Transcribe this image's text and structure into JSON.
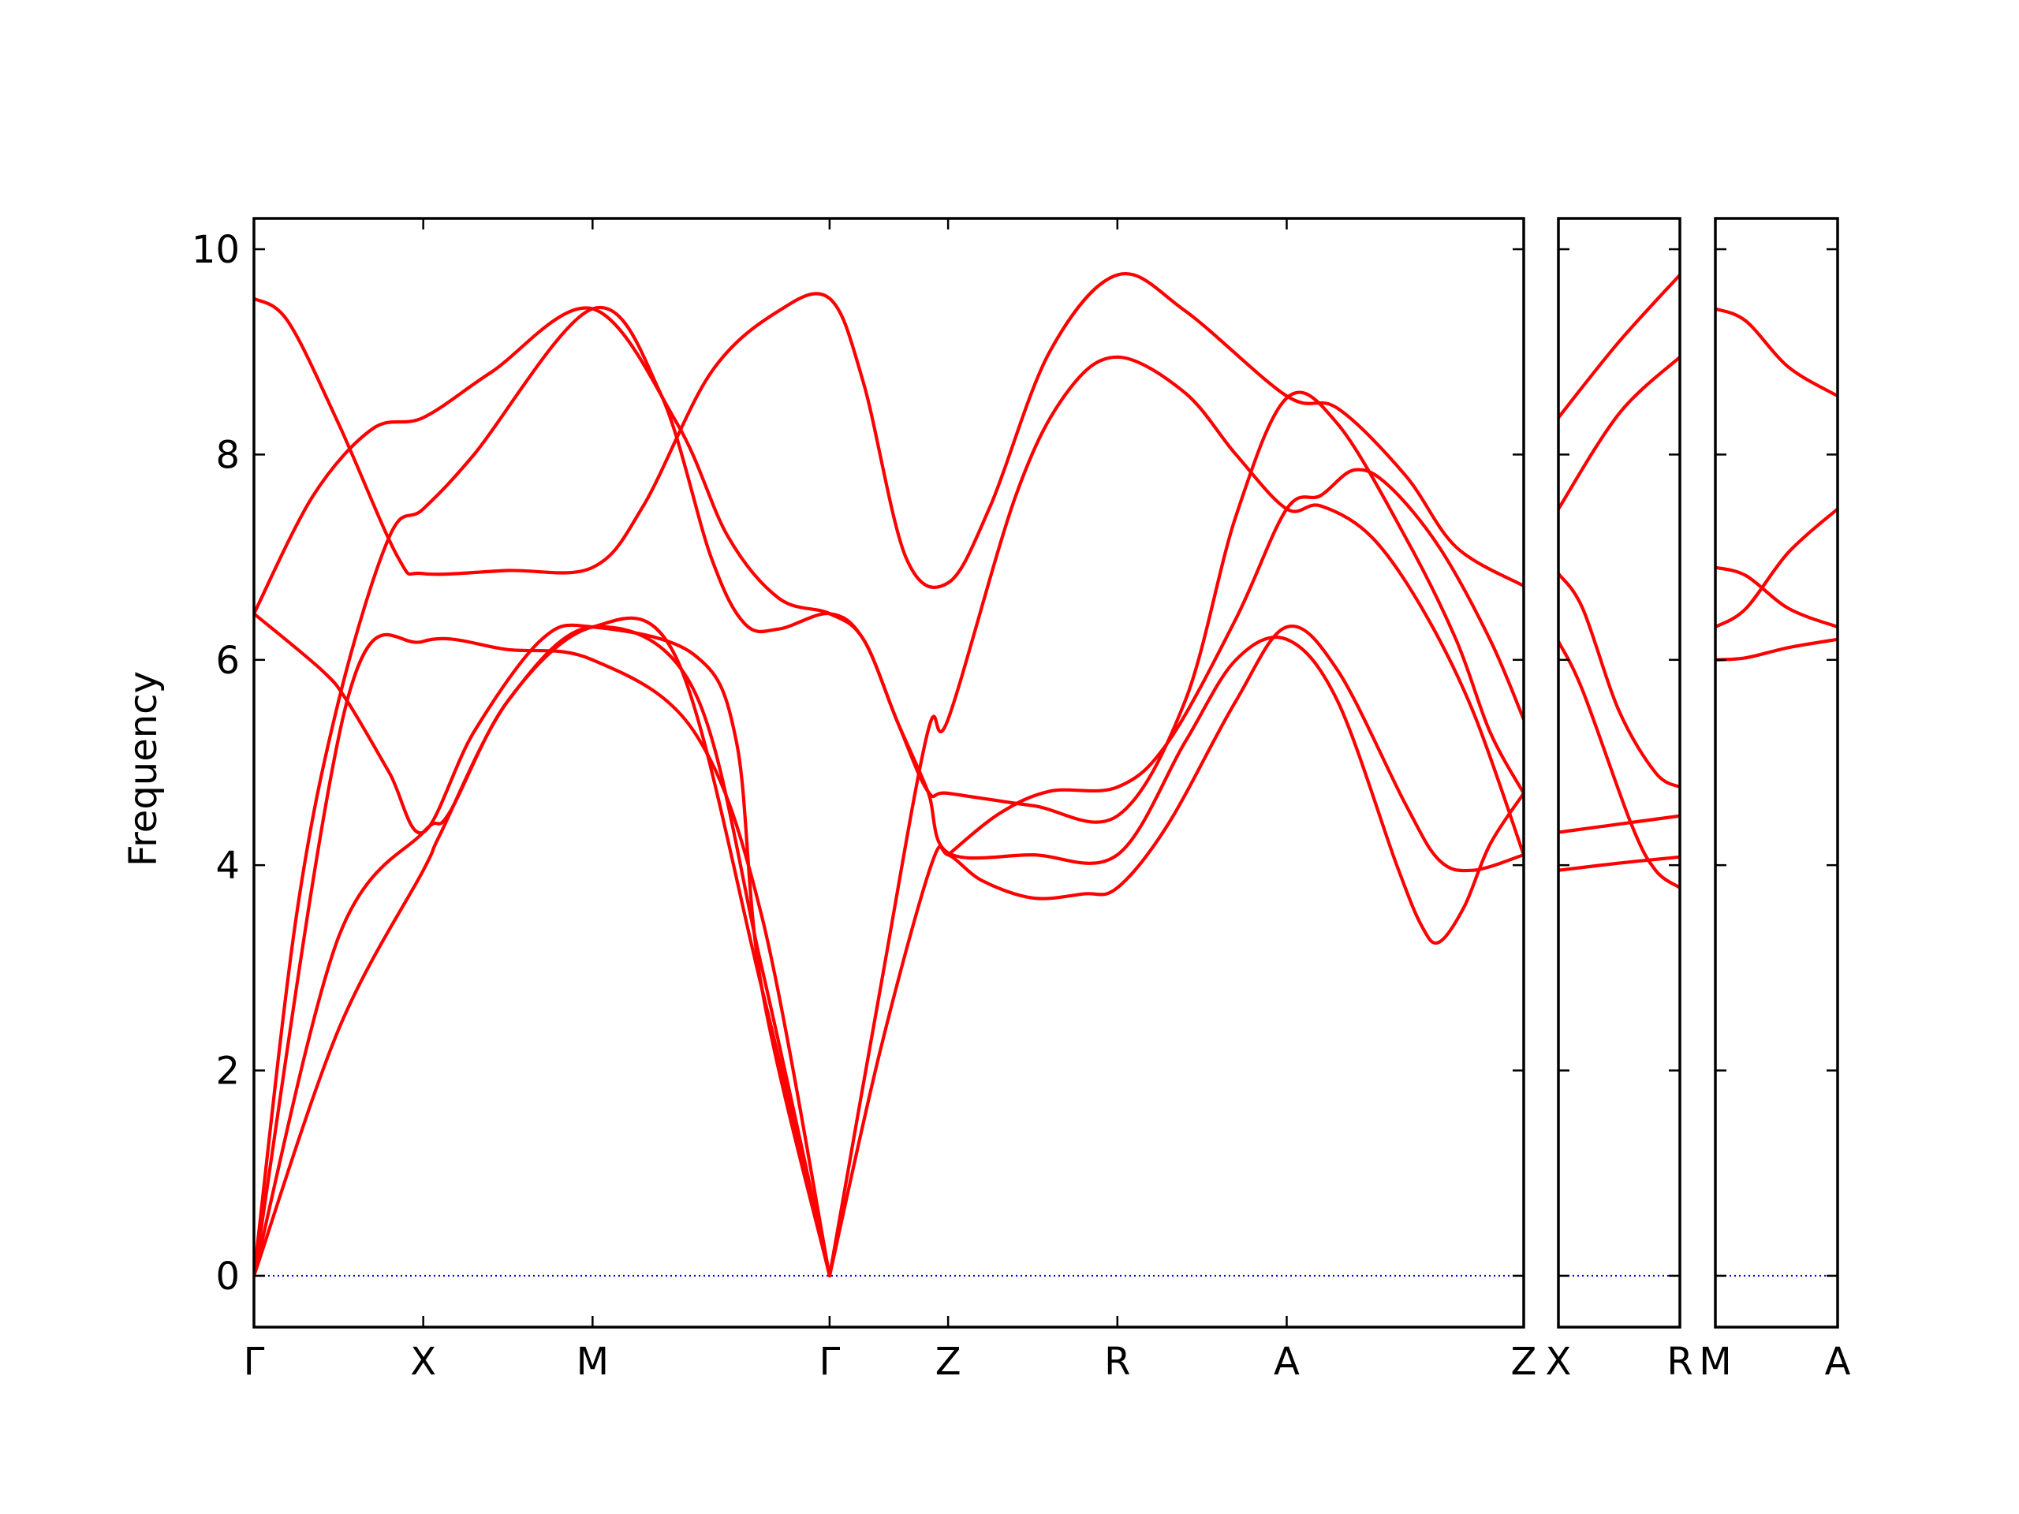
{
  "chart_data": {
    "type": "line",
    "ylabel": "Frequency",
    "ylim": [
      -0.5,
      10.3
    ],
    "yticks": [
      0,
      2,
      4,
      6,
      8,
      10
    ],
    "grid": false,
    "colors": {
      "band": "#ff0000",
      "zero_line": "#0000cc",
      "frame": "#000000"
    },
    "segments": [
      {
        "labels": [
          "Γ",
          "X",
          "M",
          "Γ",
          "Z",
          "R",
          "A",
          "Z"
        ],
        "positions": [
          0,
          1,
          2,
          3.4,
          4.1,
          5.1,
          6.1,
          7.5
        ],
        "bands": [
          [
            [
              0,
              0
            ],
            [
              0.5,
              2.4
            ],
            [
              1,
              3.95
            ],
            [
              1.1,
              4.3
            ],
            [
              1.5,
              5.6
            ],
            [
              2,
              6.32
            ],
            [
              2.5,
              6.0
            ],
            [
              3,
              2.8
            ],
            [
              3.4,
              0
            ]
          ],
          [
            [
              0,
              0
            ],
            [
              0.5,
              3.3
            ],
            [
              1,
              4.32
            ],
            [
              1.15,
              4.5
            ],
            [
              1.5,
              5.6
            ],
            [
              2,
              6.32
            ],
            [
              2.6,
              5.7
            ],
            [
              3,
              3.0
            ],
            [
              3.4,
              0
            ]
          ],
          [
            [
              0,
              0
            ],
            [
              0.55,
              5.6
            ],
            [
              1,
              6.18
            ],
            [
              1.5,
              6.1
            ],
            [
              2,
              6.0
            ],
            [
              2.6,
              5.3
            ],
            [
              3,
              3.5
            ],
            [
              3.4,
              0
            ]
          ],
          [
            [
              0,
              6.45
            ],
            [
              0.4,
              5.9
            ],
            [
              0.55,
              5.6
            ],
            [
              0.8,
              4.9
            ],
            [
              1,
              4.32
            ],
            [
              1.3,
              5.3
            ],
            [
              1.7,
              6.2
            ],
            [
              2,
              6.32
            ],
            [
              2.6,
              6.05
            ],
            [
              2.85,
              5.2
            ],
            [
              3.0,
              2.8
            ],
            [
              3.4,
              0
            ]
          ],
          [
            [
              0,
              6.45
            ],
            [
              0.35,
              7.6
            ],
            [
              0.7,
              8.25
            ],
            [
              1,
              8.36
            ],
            [
              1.4,
              8.8
            ],
            [
              2,
              9.42
            ],
            [
              2.5,
              8.3
            ],
            [
              2.8,
              7.2
            ],
            [
              3.1,
              6.6
            ],
            [
              3.4,
              6.45
            ],
            [
              3.6,
              6.2
            ],
            [
              3.8,
              5.4
            ],
            [
              3.98,
              4.72
            ],
            [
              4.1,
              4.7
            ],
            [
              4.6,
              4.58
            ],
            [
              5.1,
              4.48
            ],
            [
              5.5,
              5.6
            ],
            [
              5.8,
              7.4
            ],
            [
              6.1,
              8.55
            ],
            [
              6.4,
              8.3
            ],
            [
              6.8,
              7.2
            ],
            [
              7.1,
              6.2
            ],
            [
              7.3,
              5.3
            ],
            [
              7.5,
              4.7
            ]
          ],
          [
            [
              0,
              9.52
            ],
            [
              0.2,
              9.3
            ],
            [
              0.5,
              8.3
            ],
            [
              0.85,
              7.0
            ],
            [
              1,
              6.84
            ],
            [
              1.5,
              6.87
            ],
            [
              2,
              6.9
            ],
            [
              2.3,
              7.5
            ],
            [
              2.7,
              8.8
            ],
            [
              3.1,
              9.4
            ],
            [
              3.4,
              9.52
            ],
            [
              3.6,
              8.7
            ],
            [
              3.85,
              7.0
            ],
            [
              4.1,
              6.75
            ],
            [
              4.35,
              7.5
            ],
            [
              4.7,
              9.0
            ],
            [
              5.1,
              9.75
            ],
            [
              5.5,
              9.4
            ],
            [
              6.1,
              8.57
            ],
            [
              6.4,
              8.45
            ],
            [
              6.8,
              7.8
            ],
            [
              7.1,
              7.1
            ],
            [
              7.5,
              6.72
            ]
          ],
          [
            [
              0,
              0
            ],
            [
              0.25,
              3.5
            ],
            [
              0.5,
              5.6
            ],
            [
              0.8,
              7.2
            ],
            [
              1,
              7.47
            ],
            [
              1.3,
              8.0
            ],
            [
              2,
              9.42
            ],
            [
              2.4,
              8.6
            ],
            [
              2.7,
              7.0
            ],
            [
              2.9,
              6.35
            ],
            [
              3.1,
              6.3
            ],
            [
              3.4,
              6.45
            ],
            [
              3.6,
              6.2
            ],
            [
              3.8,
              5.4
            ],
            [
              3.98,
              4.72
            ],
            [
              4.1,
              4.12
            ],
            [
              4.6,
              4.1
            ],
            [
              5.1,
              4.1
            ],
            [
              5.5,
              5.2
            ],
            [
              5.8,
              6.0
            ],
            [
              6.1,
              6.2
            ],
            [
              6.4,
              5.6
            ],
            [
              6.75,
              4.0
            ],
            [
              6.9,
              3.4
            ],
            [
              7.0,
              3.25
            ],
            [
              7.15,
              3.6
            ],
            [
              7.3,
              4.2
            ],
            [
              7.5,
              4.7
            ]
          ],
          [
            [
              3.4,
              0
            ],
            [
              3.7,
              2.2
            ],
            [
              4.0,
              4.0
            ],
            [
              4.1,
              4.1
            ],
            [
              4.3,
              3.85
            ],
            [
              4.6,
              3.68
            ],
            [
              4.9,
              3.72
            ],
            [
              5.1,
              3.78
            ],
            [
              5.4,
              4.4
            ],
            [
              5.8,
              5.6
            ],
            [
              6.1,
              6.32
            ],
            [
              6.4,
              5.9
            ],
            [
              6.8,
              4.6
            ],
            [
              7.0,
              4.05
            ],
            [
              7.2,
              3.95
            ],
            [
              7.5,
              4.1
            ]
          ],
          [
            [
              3.4,
              0
            ],
            [
              3.7,
              2.8
            ],
            [
              3.98,
              5.3
            ],
            [
              4.1,
              5.42
            ],
            [
              4.5,
              7.6
            ],
            [
              4.8,
              8.6
            ],
            [
              5.1,
              8.95
            ],
            [
              5.5,
              8.6
            ],
            [
              5.8,
              8.0
            ],
            [
              6.1,
              7.47
            ],
            [
              6.3,
              7.5
            ],
            [
              6.6,
              7.2
            ],
            [
              6.9,
              6.5
            ],
            [
              7.2,
              5.5
            ],
            [
              7.5,
              4.1
            ]
          ],
          [
            [
              4.1,
              4.1
            ],
            [
              4.4,
              4.5
            ],
            [
              4.7,
              4.72
            ],
            [
              5.1,
              4.76
            ],
            [
              5.4,
              5.2
            ],
            [
              5.8,
              6.4
            ],
            [
              6.1,
              7.47
            ],
            [
              6.3,
              7.6
            ],
            [
              6.5,
              7.85
            ],
            [
              6.7,
              7.7
            ],
            [
              7.0,
              7.1
            ],
            [
              7.3,
              6.2
            ],
            [
              7.5,
              5.42
            ]
          ]
        ]
      },
      {
        "labels": [
          "X",
          "R"
        ],
        "positions": [
          0,
          1
        ],
        "bands": [
          [
            [
              0,
              8.36
            ],
            [
              0.5,
              9.1
            ],
            [
              1,
              9.75
            ]
          ],
          [
            [
              0,
              7.47
            ],
            [
              0.5,
              8.4
            ],
            [
              1,
              8.95
            ]
          ],
          [
            [
              0,
              6.84
            ],
            [
              0.2,
              6.5
            ],
            [
              0.5,
              5.5
            ],
            [
              0.8,
              4.9
            ],
            [
              1,
              4.76
            ]
          ],
          [
            [
              0,
              6.18
            ],
            [
              0.2,
              5.7
            ],
            [
              0.6,
              4.4
            ],
            [
              0.8,
              3.95
            ],
            [
              1,
              3.78
            ]
          ],
          [
            [
              0,
              4.32
            ],
            [
              0.5,
              4.4
            ],
            [
              1,
              4.48
            ]
          ],
          [
            [
              0,
              3.95
            ],
            [
              0.5,
              4.02
            ],
            [
              1,
              4.08
            ]
          ]
        ]
      },
      {
        "labels": [
          "M",
          "A"
        ],
        "positions": [
          0,
          1
        ],
        "bands": [
          [
            [
              0,
              9.42
            ],
            [
              0.25,
              9.3
            ],
            [
              0.6,
              8.85
            ],
            [
              1,
              8.57
            ]
          ],
          [
            [
              0,
              6.9
            ],
            [
              0.25,
              6.82
            ],
            [
              0.6,
              6.5
            ],
            [
              1,
              6.32
            ]
          ],
          [
            [
              0,
              6.32
            ],
            [
              0.25,
              6.5
            ],
            [
              0.6,
              7.05
            ],
            [
              1,
              7.47
            ]
          ],
          [
            [
              0,
              6.0
            ],
            [
              0.25,
              6.02
            ],
            [
              0.6,
              6.12
            ],
            [
              1,
              6.2
            ]
          ]
        ]
      }
    ]
  }
}
